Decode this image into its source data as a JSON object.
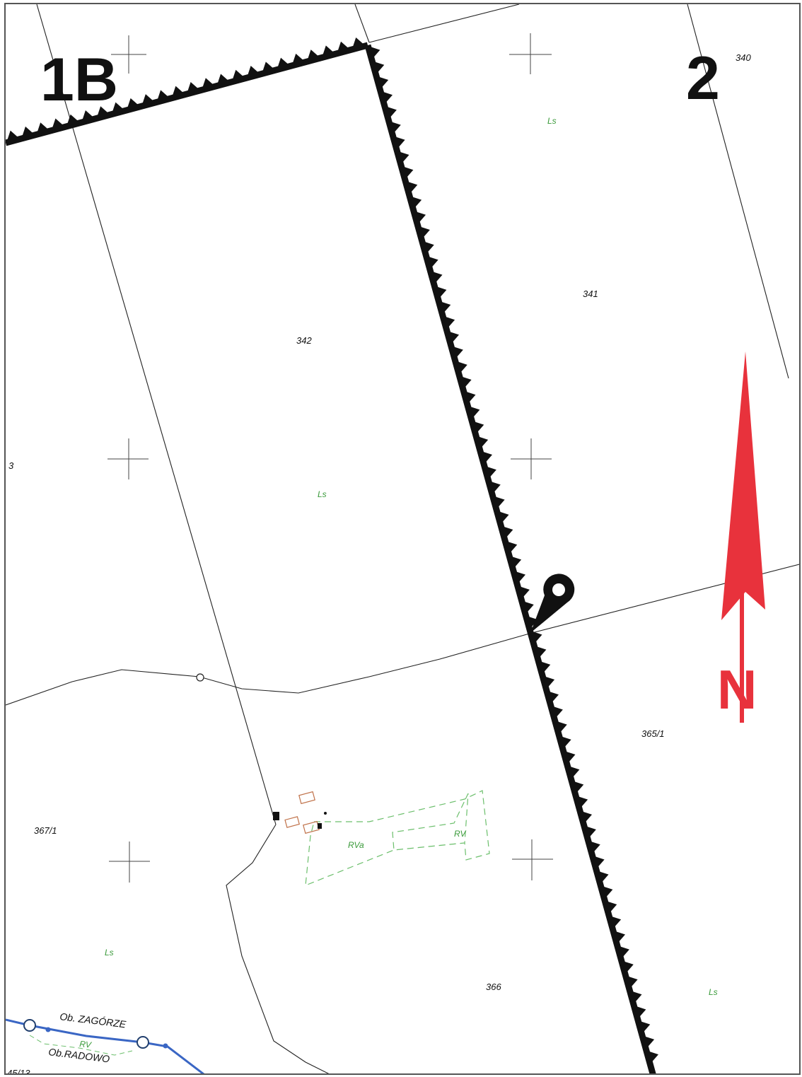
{
  "sheets": {
    "left": "1B",
    "right": "2"
  },
  "parcels": {
    "p340": "340",
    "p341": "341",
    "p342": "342",
    "p3": "3",
    "p365_1": "365/1",
    "p367_1": "367/1",
    "p366": "366",
    "p45_13": "45/13"
  },
  "land_use": {
    "ls_a": "Ls",
    "ls_b": "Ls",
    "ls_c": "Ls",
    "ls_d": "Ls",
    "rva": "RVa",
    "rv_a": "RV",
    "rv_b": "RV"
  },
  "precincts": {
    "upper": "Ob. ZAGÓRZE",
    "lower": "Ob.RADOWO"
  },
  "north_arrow": {
    "letter": "N",
    "color": "#e8323c"
  },
  "colors": {
    "boundary": "#111111",
    "parcel_line": "#222222",
    "landuse_text": "#3a9a3a",
    "precinct_line": "#3a66c4",
    "building": "#c0724a"
  },
  "icons": {
    "location_pin": "location-pin-icon"
  }
}
